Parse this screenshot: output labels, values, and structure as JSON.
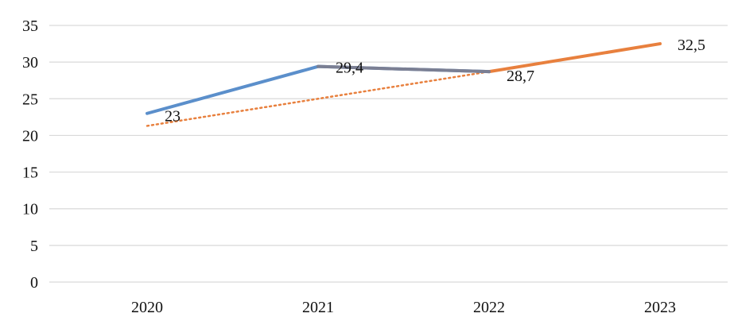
{
  "chart_data": {
    "type": "line",
    "categories": [
      "2020",
      "2021",
      "2022",
      "2023"
    ],
    "ylim": [
      0,
      35
    ],
    "yticks": [
      0,
      5,
      10,
      15,
      20,
      25,
      30,
      35
    ],
    "grid": true,
    "series": [
      {
        "values": [
          23,
          29.4,
          28.7,
          null
        ],
        "color": "#5B8FCB",
        "style": "solid"
      },
      {
        "values": [
          null,
          29.4,
          28.7,
          null
        ],
        "color": "#7B7F93",
        "style": "solid"
      },
      {
        "values": [
          null,
          null,
          28.7,
          32.5
        ],
        "color": "#E8803E",
        "style": "solid"
      },
      {
        "values": [
          21.3,
          25,
          28.7,
          null
        ],
        "color": "#E8803E",
        "style": "dotted"
      }
    ],
    "data_labels": [
      {
        "category": "2020",
        "value": 23,
        "text": "23"
      },
      {
        "category": "2021",
        "value": 29.4,
        "text": "29,4"
      },
      {
        "category": "2022",
        "value": 28.7,
        "text": "28,7"
      },
      {
        "category": "2023",
        "value": 32.5,
        "text": "32,5"
      }
    ]
  }
}
